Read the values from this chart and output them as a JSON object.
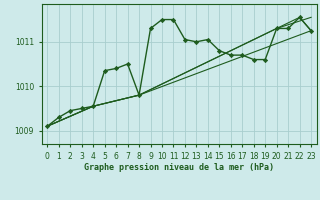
{
  "title": "Graphe pression niveau de la mer (hPa)",
  "background_color": "#ceeaea",
  "grid_color": "#a8cece",
  "line_color": "#1e5c1e",
  "xlim": [
    -0.5,
    23.5
  ],
  "ylim": [
    1008.7,
    1011.85
  ],
  "xticks": [
    0,
    1,
    2,
    3,
    4,
    5,
    6,
    7,
    8,
    9,
    10,
    11,
    12,
    13,
    14,
    15,
    16,
    17,
    18,
    19,
    20,
    21,
    22,
    23
  ],
  "yticks": [
    1009,
    1010,
    1011
  ],
  "series": [
    {
      "x": [
        0,
        1,
        2,
        3,
        4,
        5,
        6,
        7,
        8,
        9,
        10,
        11,
        12,
        13,
        14,
        15,
        16,
        17,
        18,
        19,
        20,
        21,
        22,
        23
      ],
      "y": [
        1009.1,
        1009.3,
        1009.45,
        1009.5,
        1009.55,
        1010.35,
        1010.4,
        1010.5,
        1009.8,
        1011.3,
        1011.5,
        1011.5,
        1011.05,
        1011.0,
        1011.05,
        1010.8,
        1010.7,
        1010.7,
        1010.6,
        1010.6,
        1011.3,
        1011.3,
        1011.55,
        1011.25
      ],
      "marker": true,
      "linewidth": 1.0
    },
    {
      "x": [
        0,
        4,
        8,
        23
      ],
      "y": [
        1009.1,
        1009.55,
        1009.8,
        1011.25
      ],
      "marker": false,
      "linewidth": 0.8
    },
    {
      "x": [
        0,
        4,
        8,
        20,
        23
      ],
      "y": [
        1009.1,
        1009.55,
        1009.8,
        1011.3,
        1011.55
      ],
      "marker": false,
      "linewidth": 0.8
    },
    {
      "x": [
        0,
        4,
        8,
        22,
        23
      ],
      "y": [
        1009.1,
        1009.55,
        1009.8,
        1011.55,
        1011.25
      ],
      "marker": false,
      "linewidth": 0.8
    }
  ]
}
